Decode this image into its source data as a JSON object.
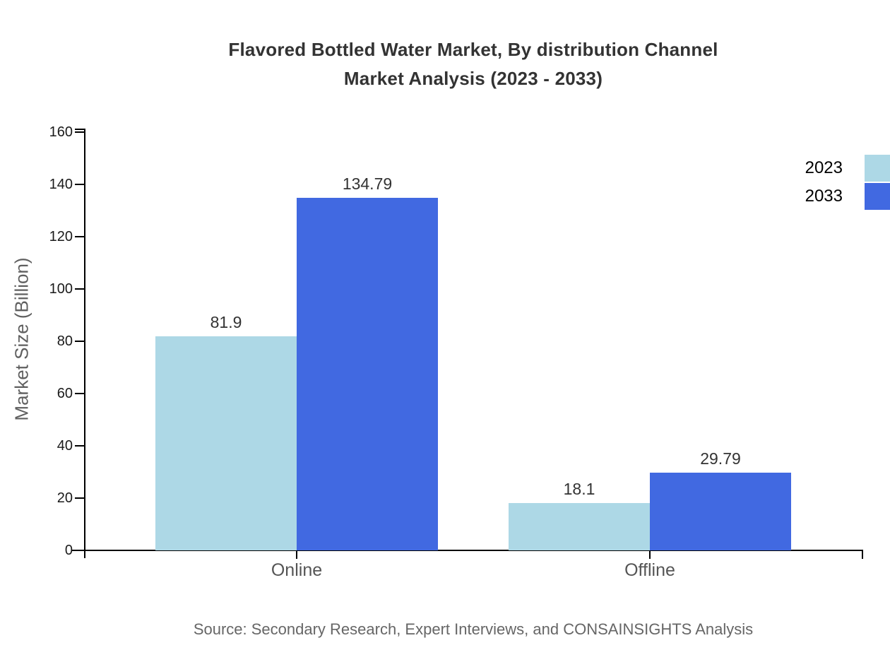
{
  "chart_data": {
    "type": "bar",
    "title": "Flavored Bottled Water Market, By distribution Channel Market Analysis (2023 - 2033)",
    "title_line1": "Flavored Bottled Water Market, By distribution Channel",
    "title_line2": "Market Analysis (2023 - 2033)",
    "categories": [
      "Online",
      "Offline"
    ],
    "series": [
      {
        "name": "2023",
        "color": "#ADD8E6",
        "values": [
          81.9,
          18.1
        ]
      },
      {
        "name": "2033",
        "color": "#4169E1",
        "values": [
          134.79,
          29.79
        ]
      }
    ],
    "xlabel": "",
    "ylabel": "Market Size (Billion)",
    "ylim": [
      0,
      160
    ],
    "yticks": [
      0,
      20,
      40,
      60,
      80,
      100,
      120,
      140,
      160
    ],
    "grid": "off",
    "legend_position": "top-right",
    "axis_color": "#000000",
    "source": "Source: Secondary Research, Expert Interviews, and CONSAINSIGHTS Analysis"
  }
}
